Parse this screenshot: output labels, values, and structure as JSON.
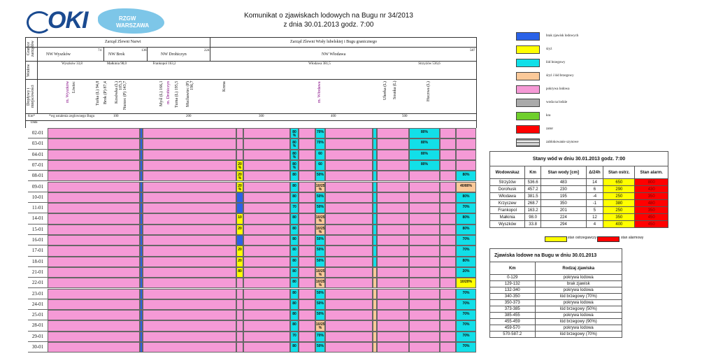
{
  "header": {
    "logo_oki": "OKI",
    "logo_rzgw_top": "RZGW",
    "logo_rzgw_bottom": "WARSZAWA",
    "title": "Komunikat o zjawiskach lodowych na Bugu nr 34/2013",
    "subtitle": "z dnia 30.01.2013 godz. 7:00"
  },
  "chart_header": {
    "row_label_granice": "Granice zarządów",
    "row_label_wodowskazy": "Wodow",
    "row_label_doplywy": "Dopływy i miejscowości",
    "km_label": "Km*",
    "data_label": "Data",
    "km_note": "*wg ustalenia zeglownego Bugu",
    "zarzad_narwi": "Zarząd Zlewni Narwi",
    "zarzad_wisly": "Zarząd Zlewni Wisły lubelskiej i Bugu granicznego",
    "nw_wyszkow": "NW Wyszków",
    "nw_brok": "NW Brok",
    "nw_drohiczyn": "NW Drohiczyn",
    "nw_wlodawa": "NW Włodawa",
    "km_marks": [
      "74",
      "136",
      "224",
      "587"
    ],
    "gauges": [
      "Wyszków 33,8",
      "Małkinia 98,0",
      "Frankopol 163,2",
      "Włodawa 381,5",
      "Strzyżów 536,6"
    ],
    "tributaries": [
      "m. Wyszków",
      "Liwiec",
      "Turka (L) 94,8",
      "Brok (P) 87,4",
      "Kosówka (L) 105,3",
      "Nurzec (P) 143,7",
      "Myśl (L) 166,1",
      "m. Drohiczyn",
      "Turna (L) 195,5",
      "Muchawiec (P) 196,7",
      "Krzna",
      "m. Włodawa",
      "Uherka (L)",
      "Sosnka (L)",
      "Huczwa (L)"
    ],
    "km_axis": [
      "100",
      "200",
      "300",
      "400",
      "500"
    ]
  },
  "dates": [
    "02-01",
    "03-01",
    "04-01",
    "07-01",
    "08-01",
    "09-01",
    "10-01",
    "11-01",
    "14-01",
    "15-01",
    "16-01",
    "17-01",
    "18-01",
    "21-01",
    "22-01",
    "23-01",
    "24-01",
    "25-01",
    "28-01",
    "29-01",
    "30-01"
  ],
  "row_labels": {
    "c1": [
      "",
      "",
      "",
      "20 %",
      "20 %",
      "20 %",
      "",
      "",
      "10",
      "20",
      "",
      "20",
      "20",
      "80",
      "",
      "",
      "",
      "",
      "",
      "",
      ""
    ],
    "c2": [
      "80 %",
      "80 %",
      "80 %",
      "80 %",
      "80",
      "80",
      "80",
      "70",
      "80",
      "80",
      "80",
      "80",
      "80",
      "80",
      "80",
      "80",
      "80",
      "80",
      "80",
      "70",
      "80"
    ],
    "c3": [
      "70%",
      "70%",
      "60",
      "60",
      "50%",
      "10/25 %",
      "50%",
      "50%",
      "10/25 %",
      "10/25 %",
      "50%",
      "50%",
      "50%",
      "10/25 %",
      "10/25 %",
      "50%",
      "50%",
      "50%",
      "10/25 %",
      "70%",
      "50%"
    ],
    "c4": [
      "80%",
      "80%",
      "80%",
      "80%",
      "",
      "",
      "",
      "",
      "",
      "",
      "",
      "",
      "",
      "",
      "",
      "",
      "",
      "",
      "",
      "",
      ""
    ],
    "c5": [
      "",
      "",
      "",
      "",
      "80%",
      "40/80%",
      "80%",
      "70%",
      "80%",
      "80%",
      "70%",
      "70%",
      "80%",
      "20%",
      "10/20%",
      "70%",
      "70%",
      "70%",
      "70%",
      "70%",
      "70%"
    ]
  },
  "legend": [
    {
      "label": "brak zjawisk lodowych",
      "color": "#2a62e8"
    },
    {
      "label": "śryż",
      "color": "#ffff00"
    },
    {
      "label": "lód brzegowy",
      "color": "#12dfe8"
    },
    {
      "label": "śryż i lód brzegowy",
      "color": "#fbc999"
    },
    {
      "label": "pokrywa lodowa",
      "color": "#f59ad6"
    },
    {
      "label": "woda na lodzie",
      "color": "#aaaaaa"
    },
    {
      "label": "kra",
      "color": "#6fcf2c"
    },
    {
      "label": "zator",
      "color": "#ff0000"
    },
    {
      "label": "zablokowanie szynowe",
      "color": "#cccccc"
    }
  ],
  "stany": {
    "title": "Stany wód w dniu 30.01.2013 godz. 7:00",
    "headers": [
      "Wodowskaz",
      "Km",
      "Stan wody [cm]",
      "Δ/24h",
      "Stan ostrz.",
      "Stan alarm."
    ],
    "rows": [
      [
        "Strzyżów",
        "536.6",
        "483",
        "14",
        "650",
        "800"
      ],
      [
        "Dorohusk",
        "457.2",
        "230",
        "6",
        "290",
        "430"
      ],
      [
        "Włodawa",
        "381.5",
        "195",
        "-4",
        "250",
        "350"
      ],
      [
        "Krzyczew",
        "268.7",
        "350",
        "-1",
        "380",
        "480"
      ],
      [
        "Frankopol",
        "163.2",
        "201",
        "5",
        "250",
        "350"
      ],
      [
        "Małkinia",
        "98.0",
        "224",
        "12",
        "350",
        "450"
      ],
      [
        "Wyszków",
        "33.8",
        "294",
        "4",
        "400",
        "450"
      ]
    ],
    "legend_warn": "stan ostrzegawczy",
    "legend_alarm": "stan alarmowy",
    "warn_color": "#ffff00",
    "alarm_color": "#ff0000"
  },
  "zjawiska": {
    "title": "Zjawiska lodowe na Bugu w dniu 30.01.2013",
    "headers": [
      "Km",
      "Rodzaj zjawiska"
    ],
    "rows": [
      [
        "0-129",
        "pokrywa lodowa"
      ],
      [
        "129-132",
        "brak zjawisk"
      ],
      [
        "132-340",
        "pokrywa lodowa"
      ],
      [
        "340-350",
        "lód brzegowy (70%)"
      ],
      [
        "350-373",
        "pokrywa lodowa"
      ],
      [
        "373-385",
        "lód brzegowy (50%)"
      ],
      [
        "385-455",
        "pokrywa lodowa"
      ],
      [
        "455-459",
        "lód brzegowy (90%)"
      ],
      [
        "459-570",
        "pokrywa lodowa"
      ],
      [
        "570-587.2",
        "lód brzegowy (70%)"
      ]
    ]
  }
}
